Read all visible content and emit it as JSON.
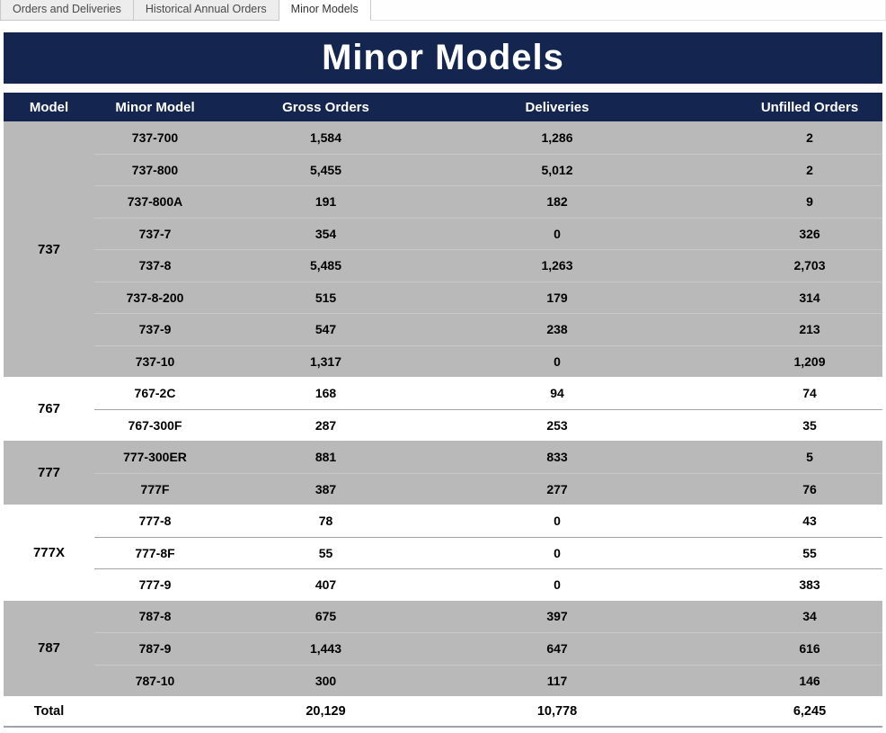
{
  "tabs": [
    {
      "label": "Orders and Deliveries",
      "active": false
    },
    {
      "label": "Historical Annual Orders",
      "active": false
    },
    {
      "label": "Minor Models",
      "active": true
    }
  ],
  "title": "Minor Models",
  "columns": {
    "model": "Model",
    "minor_model": "Minor Model",
    "gross_orders": "Gross Orders",
    "deliveries": "Deliveries",
    "unfilled_orders": "Unfilled Orders"
  },
  "groups": [
    {
      "model": "737",
      "shaded": true,
      "rows": [
        {
          "minor": "737-700",
          "gross": "1,584",
          "deliveries": "1,286",
          "unfilled": "2"
        },
        {
          "minor": "737-800",
          "gross": "5,455",
          "deliveries": "5,012",
          "unfilled": "2"
        },
        {
          "minor": "737-800A",
          "gross": "191",
          "deliveries": "182",
          "unfilled": "9"
        },
        {
          "minor": "737-7",
          "gross": "354",
          "deliveries": "0",
          "unfilled": "326"
        },
        {
          "minor": "737-8",
          "gross": "5,485",
          "deliveries": "1,263",
          "unfilled": "2,703"
        },
        {
          "minor": "737-8-200",
          "gross": "515",
          "deliveries": "179",
          "unfilled": "314"
        },
        {
          "minor": "737-9",
          "gross": "547",
          "deliveries": "238",
          "unfilled": "213"
        },
        {
          "minor": "737-10",
          "gross": "1,317",
          "deliveries": "0",
          "unfilled": "1,209"
        }
      ]
    },
    {
      "model": "767",
      "shaded": false,
      "rows": [
        {
          "minor": "767-2C",
          "gross": "168",
          "deliveries": "94",
          "unfilled": "74"
        },
        {
          "minor": "767-300F",
          "gross": "287",
          "deliveries": "253",
          "unfilled": "35"
        }
      ]
    },
    {
      "model": "777",
      "shaded": true,
      "rows": [
        {
          "minor": "777-300ER",
          "gross": "881",
          "deliveries": "833",
          "unfilled": "5"
        },
        {
          "minor": "777F",
          "gross": "387",
          "deliveries": "277",
          "unfilled": "76"
        }
      ]
    },
    {
      "model": "777X",
      "shaded": false,
      "rows": [
        {
          "minor": "777-8",
          "gross": "78",
          "deliveries": "0",
          "unfilled": "43"
        },
        {
          "minor": "777-8F",
          "gross": "55",
          "deliveries": "0",
          "unfilled": "55"
        },
        {
          "minor": "777-9",
          "gross": "407",
          "deliveries": "0",
          "unfilled": "383"
        }
      ]
    },
    {
      "model": "787",
      "shaded": true,
      "rows": [
        {
          "minor": "787-8",
          "gross": "675",
          "deliveries": "397",
          "unfilled": "34"
        },
        {
          "minor": "787-9",
          "gross": "1,443",
          "deliveries": "647",
          "unfilled": "616"
        },
        {
          "minor": "787-10",
          "gross": "300",
          "deliveries": "117",
          "unfilled": "146"
        }
      ]
    }
  ],
  "total": {
    "label": "Total",
    "gross": "20,129",
    "deliveries": "10,778",
    "unfilled": "6,245"
  },
  "colors": {
    "navy": "#14254F",
    "shaded_band": "#B9B9B9",
    "separator_shaded": "#C9C9C9",
    "separator_white": "#A3A3A3",
    "bottom_line": "#A0A4AD",
    "tab_background": "#EDEDED"
  }
}
